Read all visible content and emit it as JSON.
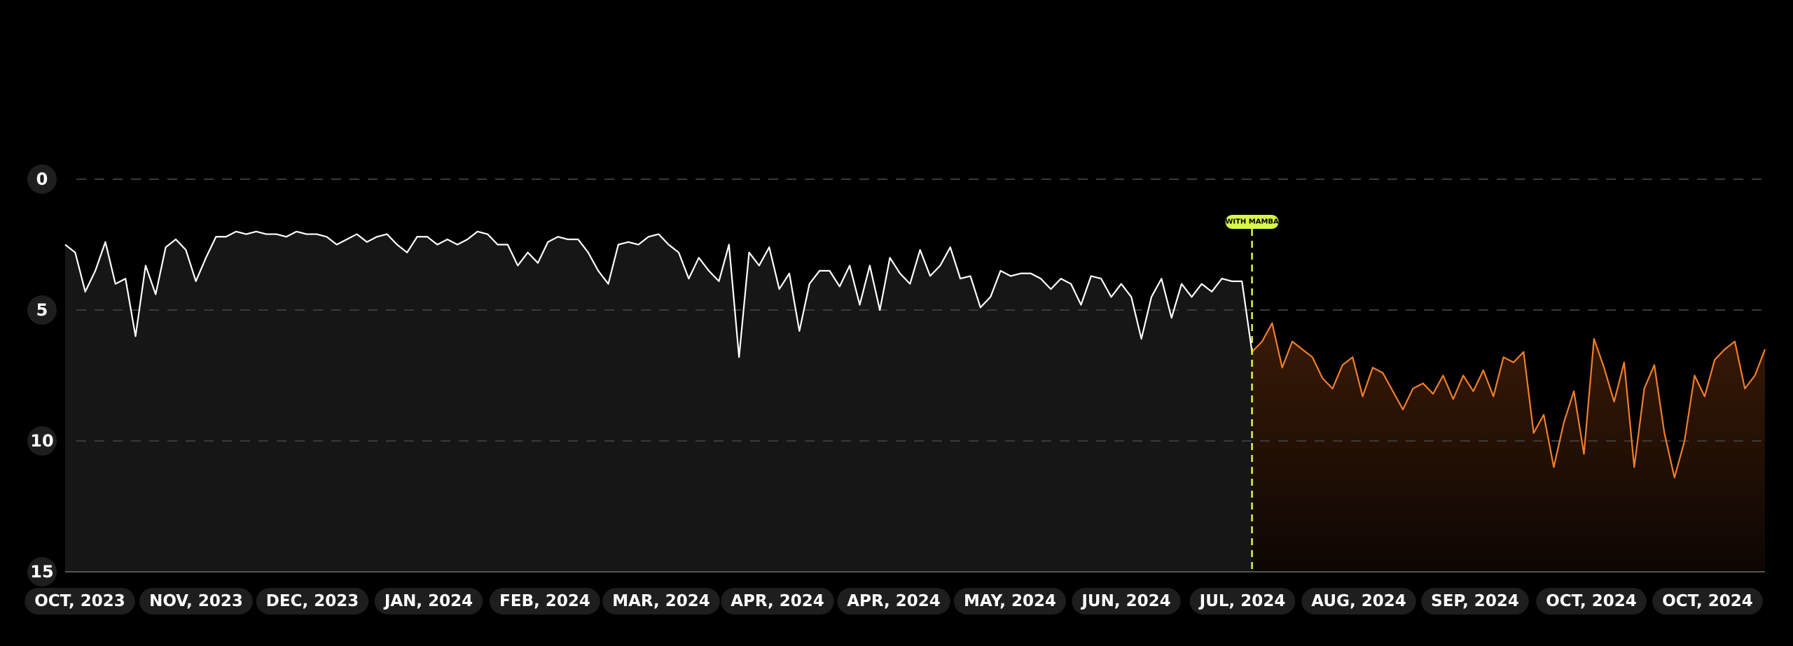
{
  "chart_data": {
    "type": "line",
    "y_inverted": true,
    "grid": true,
    "ylim": [
      0,
      15
    ],
    "yticks": [
      0,
      5,
      10,
      15
    ],
    "x_labels": [
      "OCT, 2023",
      "NOV, 2023",
      "DEC, 2023",
      "JAN, 2024",
      "FEB, 2024",
      "MAR, 2024",
      "APR, 2024",
      "APR, 2024",
      "MAY, 2024",
      "JUN, 2024",
      "JUL, 2024",
      "AUG, 2024",
      "SEP, 2024",
      "OCT, 2024",
      "OCT, 2024"
    ],
    "annotation": "WITH MAMBA",
    "annotation_color": "#d8f84a",
    "series": [
      {
        "color": "#ffffff",
        "fill": "#161616",
        "values": [
          2.5,
          2.8,
          4.3,
          3.5,
          2.4,
          4,
          3.8,
          6,
          3.3,
          4.4,
          2.6,
          2.3,
          2.7,
          3.9,
          3,
          2.2,
          2.2,
          2,
          2.1,
          2,
          2.1,
          2.1,
          2.2,
          2,
          2.1,
          2.1,
          2.2,
          2.5,
          2.3,
          2.1,
          2.4,
          2.2,
          2.1,
          2.5,
          2.8,
          2.2,
          2.2,
          2.5,
          2.3,
          2.5,
          2.3,
          2,
          2.1,
          2.5,
          2.5,
          3.3,
          2.8,
          3.2,
          2.4,
          2.2,
          2.3,
          2.3,
          2.8,
          3.5,
          4,
          2.5,
          2.4,
          2.5,
          2.2,
          2.1,
          2.5,
          2.8,
          3.8,
          3,
          3.5,
          3.9,
          2.5,
          6.8,
          2.8,
          3.3,
          2.6,
          4.2,
          3.6,
          5.8,
          4,
          3.5,
          3.5,
          4.1,
          3.3,
          4.8,
          3.3,
          5,
          3,
          3.6,
          4,
          2.7,
          3.7,
          3.3,
          2.6,
          3.8,
          3.7,
          4.9,
          4.5,
          3.5,
          3.7,
          3.6,
          3.6,
          3.8,
          4.2,
          3.8,
          4,
          4.8,
          3.7,
          3.8,
          4.5,
          4,
          4.5,
          6.1,
          4.5,
          3.8,
          5.3,
          4,
          4.5,
          4,
          4.3,
          3.8,
          3.9,
          3.9,
          6.6,
          null,
          null,
          null,
          null,
          null,
          null,
          null,
          null,
          null,
          null,
          null,
          null,
          null,
          null,
          null,
          null,
          null,
          null,
          null,
          null,
          null,
          null,
          null,
          null,
          null,
          null,
          null,
          null,
          null,
          null,
          null,
          null,
          null,
          null,
          null,
          null,
          null,
          null,
          null,
          null,
          null,
          null,
          null,
          null,
          null,
          null,
          null,
          null,
          null,
          null,
          null
        ]
      },
      {
        "color": "#f07f2a",
        "fill": "#2a1204",
        "values": [
          null,
          null,
          null,
          null,
          null,
          null,
          null,
          null,
          null,
          null,
          null,
          null,
          null,
          null,
          null,
          null,
          null,
          null,
          null,
          null,
          null,
          null,
          null,
          null,
          null,
          null,
          null,
          null,
          null,
          null,
          null,
          null,
          null,
          null,
          null,
          null,
          null,
          null,
          null,
          null,
          null,
          null,
          null,
          null,
          null,
          null,
          null,
          null,
          null,
          null,
          null,
          null,
          null,
          null,
          null,
          null,
          null,
          null,
          null,
          null,
          null,
          null,
          null,
          null,
          null,
          null,
          null,
          null,
          null,
          null,
          null,
          null,
          null,
          null,
          null,
          null,
          null,
          null,
          null,
          null,
          null,
          null,
          null,
          null,
          null,
          null,
          null,
          null,
          null,
          null,
          null,
          null,
          null,
          null,
          null,
          null,
          null,
          null,
          null,
          null,
          null,
          null,
          null,
          null,
          null,
          null,
          null,
          null,
          null,
          null,
          null,
          null,
          null,
          null,
          null,
          null,
          null,
          null,
          6.6,
          6.2,
          5.5,
          7.2,
          6.2,
          6.5,
          6.8,
          7.6,
          8,
          7.1,
          6.8,
          8.3,
          7.2,
          7.4,
          8.1,
          8.8,
          8,
          7.8,
          8.2,
          7.5,
          8.4,
          7.5,
          8.1,
          7.3,
          8.3,
          6.8,
          7,
          6.6,
          9.7,
          9,
          11,
          9.3,
          8.1,
          10.5,
          6.1,
          7.2,
          8.5,
          7,
          11,
          8,
          7.1,
          9.7,
          11.4,
          10,
          7.5,
          8.3,
          6.9,
          6.5,
          6.2,
          8,
          7.5,
          6.5
        ]
      }
    ]
  }
}
